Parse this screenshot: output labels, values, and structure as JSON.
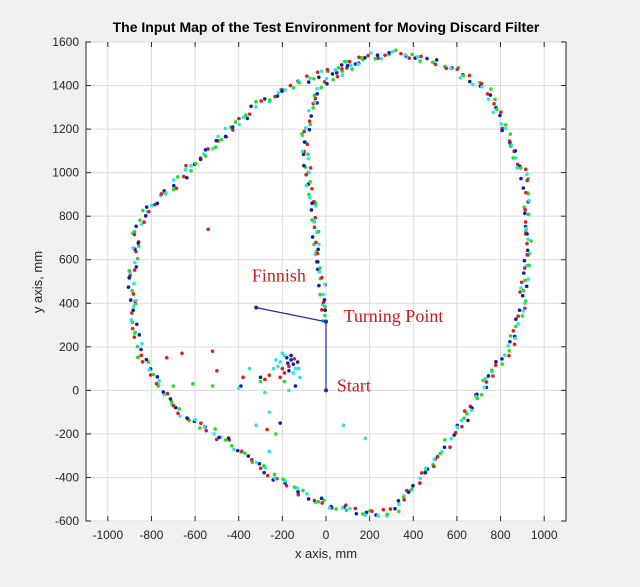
{
  "chart_data": {
    "type": "scatter",
    "title": "The Input Map of the Test Environment for Moving Discard Filter",
    "xlabel": "x axis, mm",
    "ylabel": "y axis, mm",
    "xlim": [
      -1100,
      1100
    ],
    "ylim": [
      -600,
      1600
    ],
    "xticks": [
      -1000,
      -800,
      -600,
      -400,
      -200,
      0,
      200,
      400,
      600,
      800,
      1000
    ],
    "yticks": [
      -600,
      -400,
      -200,
      0,
      200,
      400,
      600,
      800,
      1000,
      1200,
      1400,
      1600
    ],
    "grid": true,
    "colors": {
      "red": "#dd1f1f",
      "green": "#22e022",
      "blue": "#0b1fb4",
      "cyan": "#22e8e8",
      "path": "#1a2bb0",
      "annotation": "#cc1a1a"
    },
    "boundary_outline": [
      [
        -320,
        380
      ],
      [
        0,
        315
      ],
      [
        -100,
        1170
      ],
      [
        -20,
        1395
      ],
      [
        180,
        1530
      ],
      [
        340,
        1550
      ],
      [
        520,
        1510
      ],
      [
        740,
        1380
      ],
      [
        840,
        1160
      ],
      [
        920,
        950
      ],
      [
        930,
        750
      ],
      [
        920,
        540
      ],
      [
        900,
        400
      ],
      [
        860,
        220
      ],
      [
        720,
        20
      ],
      [
        600,
        -180
      ],
      [
        480,
        -350
      ],
      [
        380,
        -470
      ],
      [
        300,
        -560
      ],
      [
        200,
        -565
      ],
      [
        0,
        -520
      ],
      [
        -180,
        -440
      ],
      [
        -340,
        -320
      ],
      [
        -500,
        -200
      ],
      [
        -700,
        -80
      ],
      [
        -780,
        60
      ],
      [
        -850,
        160
      ],
      [
        -880,
        300
      ],
      [
        -890,
        500
      ],
      [
        -870,
        720
      ],
      [
        -820,
        830
      ],
      [
        -700,
        940
      ],
      [
        -560,
        1090
      ],
      [
        -420,
        1220
      ],
      [
        -300,
        1320
      ],
      [
        -150,
        1410
      ],
      [
        20,
        1470
      ],
      [
        180,
        1530
      ]
    ],
    "inner_points": [
      {
        "x": -180,
        "y": 150,
        "c": "blue"
      },
      {
        "x": -160,
        "y": 140,
        "c": "blue"
      },
      {
        "x": -150,
        "y": 120,
        "c": "blue"
      },
      {
        "x": -140,
        "y": 100,
        "c": "cyan"
      },
      {
        "x": -170,
        "y": 90,
        "c": "blue"
      },
      {
        "x": -200,
        "y": 100,
        "c": "red"
      },
      {
        "x": -210,
        "y": 130,
        "c": "cyan"
      },
      {
        "x": -190,
        "y": 160,
        "c": "cyan"
      },
      {
        "x": -160,
        "y": 160,
        "c": "blue"
      },
      {
        "x": -130,
        "y": 130,
        "c": "blue"
      },
      {
        "x": -125,
        "y": 100,
        "c": "cyan"
      },
      {
        "x": -150,
        "y": 80,
        "c": "cyan"
      },
      {
        "x": -190,
        "y": 80,
        "c": "red"
      },
      {
        "x": -220,
        "y": 110,
        "c": "cyan"
      },
      {
        "x": -230,
        "y": 140,
        "c": "cyan"
      },
      {
        "x": -200,
        "y": 170,
        "c": "cyan"
      },
      {
        "x": -170,
        "y": 110,
        "c": "red"
      },
      {
        "x": -175,
        "y": 125,
        "c": "blue"
      },
      {
        "x": -145,
        "y": 145,
        "c": "red"
      },
      {
        "x": -240,
        "y": 100,
        "c": "cyan"
      },
      {
        "x": -260,
        "y": 70,
        "c": "red"
      },
      {
        "x": -280,
        "y": 50,
        "c": "red"
      },
      {
        "x": -300,
        "y": 60,
        "c": "blue"
      },
      {
        "x": -350,
        "y": 100,
        "c": "cyan"
      },
      {
        "x": -380,
        "y": 60,
        "c": "red"
      },
      {
        "x": -390,
        "y": 20,
        "c": "blue"
      },
      {
        "x": -400,
        "y": 10,
        "c": "cyan"
      },
      {
        "x": -520,
        "y": 20,
        "c": "green"
      },
      {
        "x": -610,
        "y": 30,
        "c": "green"
      },
      {
        "x": -700,
        "y": 20,
        "c": "green"
      },
      {
        "x": -730,
        "y": 150,
        "c": "red"
      },
      {
        "x": -660,
        "y": 170,
        "c": "red"
      },
      {
        "x": -520,
        "y": 180,
        "c": "red"
      },
      {
        "x": -500,
        "y": 90,
        "c": "red"
      },
      {
        "x": -300,
        "y": 40,
        "c": "green"
      },
      {
        "x": -280,
        "y": -10,
        "c": "cyan"
      },
      {
        "x": -260,
        "y": -100,
        "c": "cyan"
      },
      {
        "x": -270,
        "y": -180,
        "c": "red"
      },
      {
        "x": -260,
        "y": -280,
        "c": "cyan"
      },
      {
        "x": -230,
        "y": -200,
        "c": "green"
      },
      {
        "x": -210,
        "y": -150,
        "c": "blue"
      },
      {
        "x": -170,
        "y": 0,
        "c": "cyan"
      },
      {
        "x": -140,
        "y": 20,
        "c": "blue"
      },
      {
        "x": -120,
        "y": 60,
        "c": "cyan"
      },
      {
        "x": 80,
        "y": -160,
        "c": "cyan"
      },
      {
        "x": 180,
        "y": -220,
        "c": "cyan"
      },
      {
        "x": -320,
        "y": -160,
        "c": "cyan"
      },
      {
        "x": -540,
        "y": 740,
        "c": "red"
      },
      {
        "x": -190,
        "y": 40,
        "c": "green"
      },
      {
        "x": -210,
        "y": 60,
        "c": "red"
      }
    ],
    "robot_path": [
      [
        0,
        0
      ],
      [
        0,
        315
      ],
      [
        -320,
        380
      ]
    ],
    "annotations": [
      {
        "text": "Finnish",
        "x": -340,
        "y": 500
      },
      {
        "text": "Turning Point",
        "x": 80,
        "y": 315
      },
      {
        "text": "Start",
        "x": 50,
        "y": -5
      }
    ]
  }
}
